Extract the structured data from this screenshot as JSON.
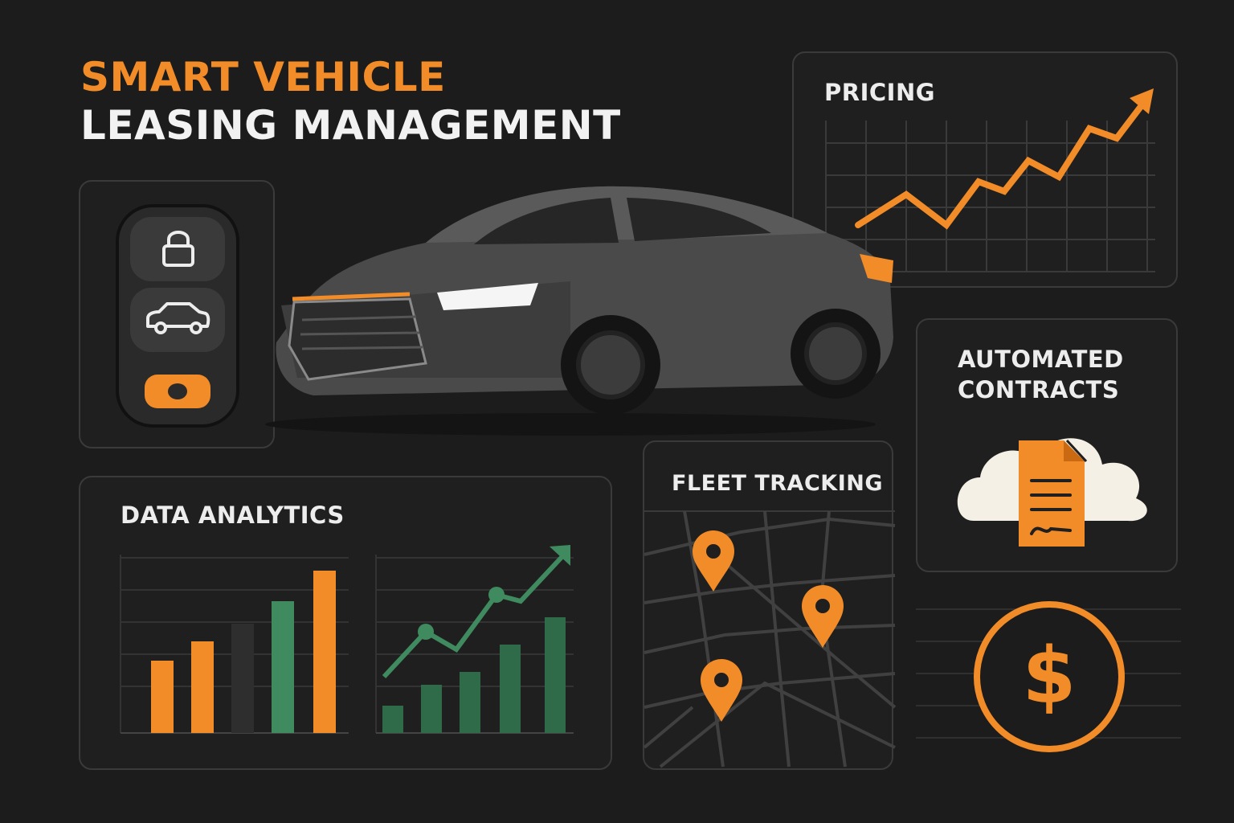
{
  "header": {
    "line1": "SMART VEHICLE",
    "line2": "LEASING MANAGEMENT"
  },
  "pricing": {
    "label": "PRICING"
  },
  "contracts": {
    "label_line1": "AUTOMATED",
    "label_line2": "CONTRACTS"
  },
  "analytics": {
    "label": "DATA ANALYTICS"
  },
  "fleet": {
    "label": "FLEET TRACKING"
  },
  "colors": {
    "accent": "#f28c28",
    "green": "#3f8a5f",
    "background": "#1c1c1c",
    "panel_border": "#3a3a3a"
  },
  "icons": [
    "lock-icon",
    "car-icon",
    "key-fob-icon",
    "location-pin-icon",
    "cloud-document-icon",
    "dollar-icon",
    "trend-arrow-icon"
  ]
}
